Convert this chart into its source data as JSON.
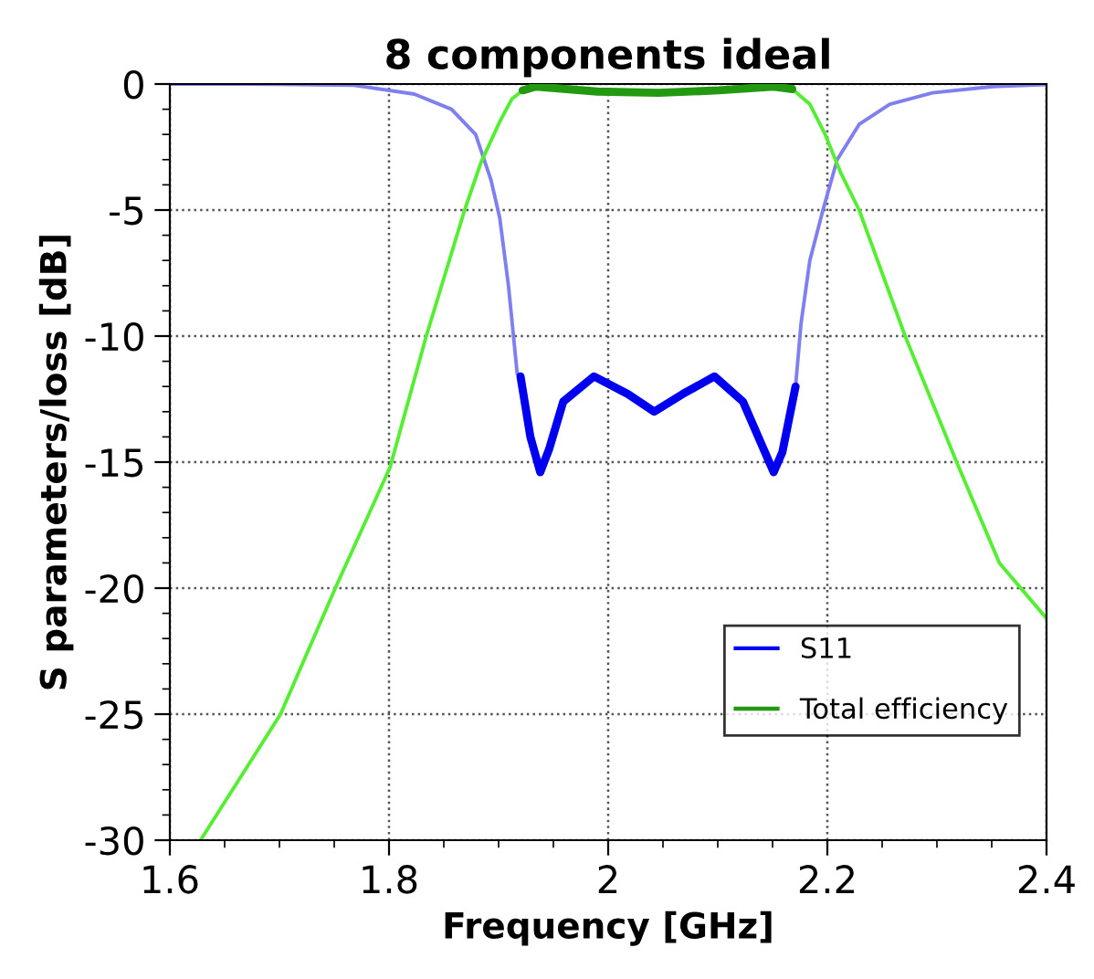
{
  "chart_data": {
    "type": "line",
    "title": "8 components ideal",
    "xlabel": "Frequency [GHz]",
    "ylabel": "S parameters/loss [dB]",
    "xlim": [
      1.6,
      2.4
    ],
    "xticks": [
      1.6,
      1.8,
      2,
      2.2,
      2.4
    ],
    "ylim": [
      -30,
      0
    ],
    "yticks": [
      -30,
      -25,
      -20,
      -15,
      -10,
      -5,
      0
    ],
    "grid": true,
    "legend": "bottom right",
    "line_style": "solid",
    "marker": "none",
    "series": [
      {
        "color": "#7f7fef",
        "x": [
          1.6,
          1.7,
          1.768,
          1.823,
          1.857,
          1.879,
          1.893,
          1.901,
          1.909,
          1.917,
          1.92
        ],
        "values": [
          0,
          -0.01,
          -0.05,
          -0.4,
          -1.0,
          -2.0,
          -3.8,
          -5.3,
          -8,
          -11.5,
          -11.6
        ]
      },
      {
        "color": "#7f7fef",
        "x": [
          2.171,
          2.176,
          2.184,
          2.196,
          2.209,
          2.229,
          2.257,
          2.296,
          2.351,
          2.4
        ],
        "values": [
          -12.0,
          -9.5,
          -7.0,
          -5.0,
          -3.0,
          -1.6,
          -0.8,
          -0.35,
          -0.1,
          -0.02
        ]
      },
      {
        "color": "#55ee33",
        "x": [
          1.628,
          1.701,
          1.751,
          1.801,
          1.834,
          1.869,
          1.884,
          1.901,
          1.912,
          1.922
        ],
        "values": [
          -30,
          -25,
          -20,
          -15.2,
          -10,
          -5,
          -3.1,
          -1.5,
          -0.6,
          -0.25
        ]
      },
      {
        "color": "#55ee33",
        "x": [
          2.168,
          2.184,
          2.198,
          2.212,
          2.229,
          2.271,
          2.318,
          2.357,
          2.4
        ],
        "values": [
          -0.2,
          -0.8,
          -2.0,
          -3.5,
          -5.0,
          -10.0,
          -15,
          -19,
          -21.2
        ]
      },
      {
        "name": "S11",
        "color": "#0000ee",
        "x": [
          1.92,
          1.929,
          1.938,
          1.946,
          1.959,
          1.987,
          2.018,
          2.042,
          2.068,
          2.097,
          2.123,
          2.14,
          2.151,
          2.159,
          2.171
        ],
        "values": [
          -11.6,
          -14,
          -15.4,
          -14.5,
          -12.6,
          -11.6,
          -12.3,
          -13.0,
          -12.3,
          -11.6,
          -12.6,
          -14.3,
          -15.4,
          -14.6,
          -12.0
        ]
      },
      {
        "name": "Total efficiency",
        "color": "#229911",
        "x": [
          1.922,
          1.934,
          1.99,
          2.046,
          2.101,
          2.151,
          2.168
        ],
        "values": [
          -0.25,
          -0.1,
          -0.3,
          -0.35,
          -0.25,
          -0.1,
          -0.2
        ]
      }
    ]
  }
}
